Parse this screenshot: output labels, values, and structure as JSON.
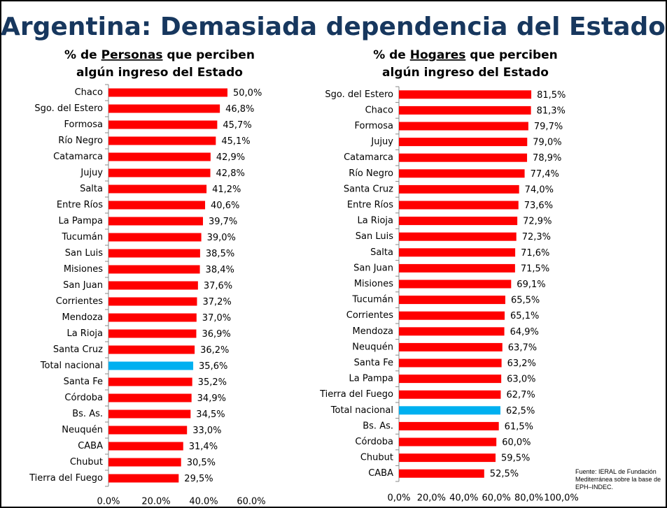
{
  "title": "Argentina: Demasiada dependencia del Estado",
  "source": "Fuente: IERAL de Fundación Mediterránea sobre la base de EPH–INDEC.",
  "chart_data": [
    {
      "type": "barh",
      "title_lines": [
        [
          "% de ",
          "Personas",
          " que perciben"
        ],
        [
          "algún ingreso del Estado"
        ]
      ],
      "title_underline": [
        [
          false,
          true,
          false
        ],
        [
          false
        ]
      ],
      "categories": [
        "Chaco",
        "Sgo. del Estero",
        "Formosa",
        "Río Negro",
        "Catamarca",
        "Jujuy",
        "Salta",
        "Entre Ríos",
        "La Pampa",
        "Tucumán",
        "San Luis",
        "Misiones",
        "San Juan",
        "Corrientes",
        "Mendoza",
        "La Rioja",
        "Santa Cruz",
        "Total nacional",
        "Santa Fe",
        "Córdoba",
        "Bs. As.",
        "Neuquén",
        "CABA",
        "Chubut",
        "Tierra del Fuego"
      ],
      "values": [
        50.0,
        46.8,
        45.7,
        45.1,
        42.9,
        42.8,
        41.2,
        40.6,
        39.7,
        39.0,
        38.5,
        38.4,
        37.6,
        37.2,
        37.0,
        36.9,
        36.2,
        35.6,
        35.2,
        34.9,
        34.5,
        33.0,
        31.4,
        30.5,
        29.5
      ],
      "value_labels": [
        "50,0%",
        "46,8%",
        "45,7%",
        "45,1%",
        "42,9%",
        "42,8%",
        "41,2%",
        "40,6%",
        "39,7%",
        "39,0%",
        "38,5%",
        "38,4%",
        "37,6%",
        "37,2%",
        "37,0%",
        "36,9%",
        "36,2%",
        "35,6%",
        "35,2%",
        "34,9%",
        "34,5%",
        "33,0%",
        "31,4%",
        "30,5%",
        "29,5%"
      ],
      "colors": [
        "#ff0000",
        "#ff0000",
        "#ff0000",
        "#ff0000",
        "#ff0000",
        "#ff0000",
        "#ff0000",
        "#ff0000",
        "#ff0000",
        "#ff0000",
        "#ff0000",
        "#ff0000",
        "#ff0000",
        "#ff0000",
        "#ff0000",
        "#ff0000",
        "#ff0000",
        "#00b0f0",
        "#ff0000",
        "#ff0000",
        "#ff0000",
        "#ff0000",
        "#ff0000",
        "#ff0000",
        "#ff0000"
      ],
      "xlim": [
        0,
        60
      ],
      "xticks": [
        {
          "value": 0,
          "label": "0.0%"
        },
        {
          "value": 20,
          "label": "20.0%"
        },
        {
          "value": 40,
          "label": "40.0%"
        },
        {
          "value": 60,
          "label": "60.0%"
        }
      ]
    },
    {
      "type": "barh",
      "title_lines": [
        [
          "% de ",
          "Hogares",
          " que perciben"
        ],
        [
          "algún ingreso del Estado"
        ]
      ],
      "title_underline": [
        [
          false,
          true,
          false
        ],
        [
          false
        ]
      ],
      "categories": [
        "Sgo. del Estero",
        "Chaco",
        "Formosa",
        "Jujuy",
        "Catamarca",
        "Río Negro",
        "Santa Cruz",
        "Entre Ríos",
        "La Rioja",
        "San Luis",
        "Salta",
        "San Juan",
        "Misiones",
        "Tucumán",
        "Corrientes",
        "Mendoza",
        "Neuquén",
        "Santa Fe",
        "La Pampa",
        "Tierra del Fuego",
        "Total nacional",
        "Bs. As.",
        "Córdoba",
        "Chubut",
        "CABA"
      ],
      "values": [
        81.5,
        81.3,
        79.7,
        79.0,
        78.9,
        77.4,
        74.0,
        73.6,
        72.9,
        72.3,
        71.6,
        71.5,
        69.1,
        65.5,
        65.1,
        64.9,
        63.7,
        63.2,
        63.0,
        62.7,
        62.5,
        61.5,
        60.0,
        59.5,
        52.5
      ],
      "value_labels": [
        "81,5%",
        "81,3%",
        "79,7%",
        "79,0%",
        "78,9%",
        "77,4%",
        "74,0%",
        "73,6%",
        "72,9%",
        "72,3%",
        "71,6%",
        "71,5%",
        "69,1%",
        "65,5%",
        "65,1%",
        "64,9%",
        "63,7%",
        "63,2%",
        "63,0%",
        "62,7%",
        "62,5%",
        "61,5%",
        "60,0%",
        "59,5%",
        "52,5%"
      ],
      "colors": [
        "#ff0000",
        "#ff0000",
        "#ff0000",
        "#ff0000",
        "#ff0000",
        "#ff0000",
        "#ff0000",
        "#ff0000",
        "#ff0000",
        "#ff0000",
        "#ff0000",
        "#ff0000",
        "#ff0000",
        "#ff0000",
        "#ff0000",
        "#ff0000",
        "#ff0000",
        "#ff0000",
        "#ff0000",
        "#ff0000",
        "#00b0f0",
        "#ff0000",
        "#ff0000",
        "#ff0000",
        "#ff0000"
      ],
      "xlim": [
        0,
        100
      ],
      "xticks": [
        {
          "value": 0,
          "label": "0,0%"
        },
        {
          "value": 20,
          "label": "20,0%"
        },
        {
          "value": 40,
          "label": "40,0%"
        },
        {
          "value": 60,
          "label": "60,0%"
        },
        {
          "value": 80,
          "label": "80,0%"
        },
        {
          "value": 100,
          "label": "100,0%"
        }
      ]
    }
  ]
}
